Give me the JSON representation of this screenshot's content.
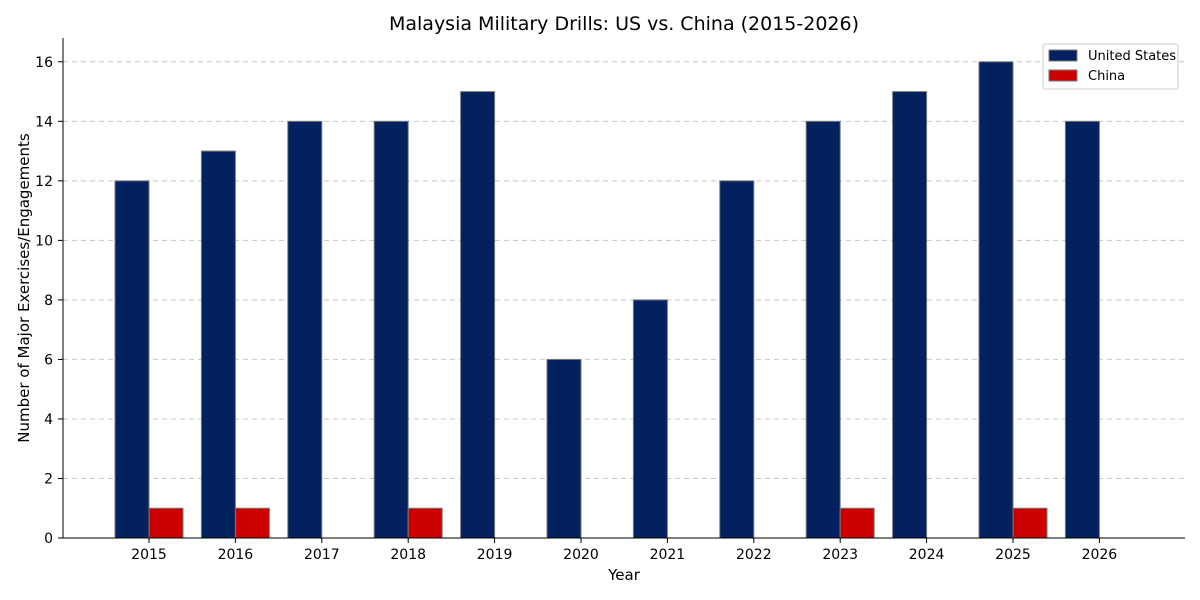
{
  "chart_data": {
    "type": "bar",
    "title": "Malaysia Military Drills: US vs. China (2015-2026)",
    "xlabel": "Year",
    "ylabel": "Number of Major Exercises/Engagements",
    "categories": [
      "2015",
      "2016",
      "2017",
      "2018",
      "2019",
      "2020",
      "2021",
      "2022",
      "2023",
      "2024",
      "2025",
      "2026"
    ],
    "series": [
      {
        "name": "United States",
        "color": "#03205f",
        "values": [
          12,
          13,
          14,
          14,
          15,
          6,
          8,
          12,
          14,
          15,
          16,
          14
        ]
      },
      {
        "name": "China",
        "color": "#cc0000",
        "values": [
          1,
          1,
          0,
          1,
          0,
          0,
          0,
          0,
          1,
          0,
          1,
          0
        ]
      }
    ],
    "ylim": [
      0,
      16.8
    ],
    "yticks": [
      0,
      2,
      4,
      6,
      8,
      10,
      12,
      14,
      16
    ],
    "grid": "horizontal dashed",
    "legend": "top-right"
  }
}
